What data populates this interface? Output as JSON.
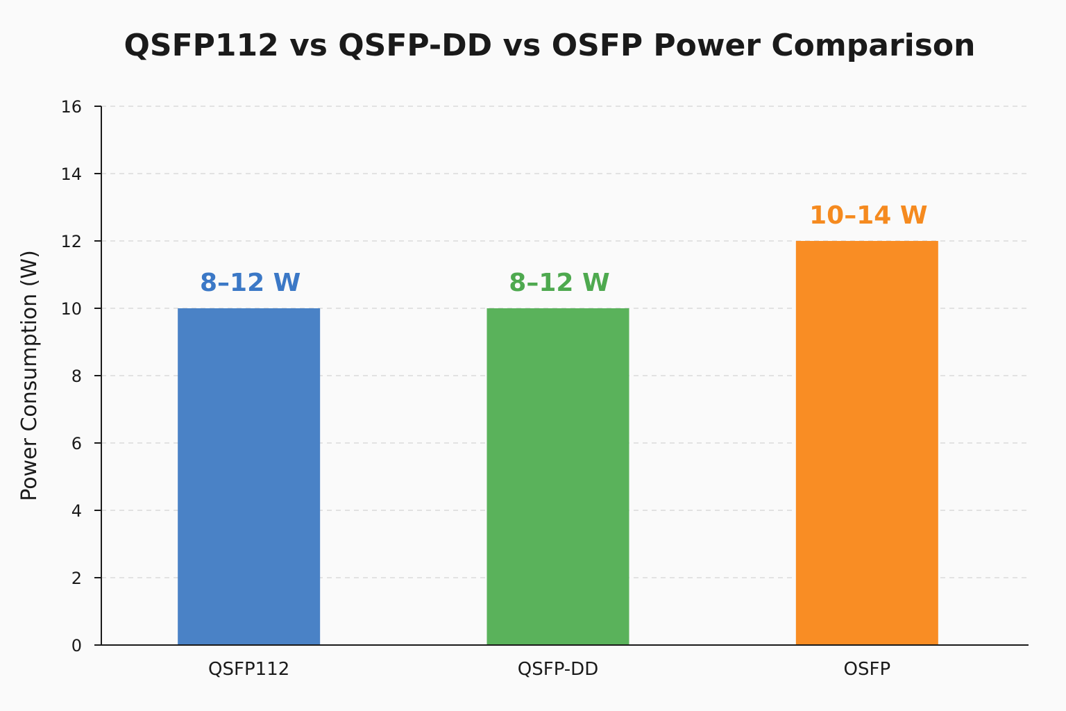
{
  "chart_data": {
    "type": "bar",
    "title": "QSFP112 vs QSFP-DD vs OSFP Power Comparison",
    "xlabel": "",
    "ylabel": "Power Consumption (W)",
    "ylim": [
      0,
      16
    ],
    "yticks": [
      0,
      2,
      4,
      6,
      8,
      10,
      12,
      14,
      16
    ],
    "grid": true,
    "categories": [
      "QSFP112",
      "QSFP-DD",
      "OSFP"
    ],
    "values": [
      10,
      10,
      12
    ],
    "data_labels": [
      "8–12 W",
      "8–12 W",
      "10–14 W"
    ],
    "colors": [
      "#4a82c6",
      "#5ab25b",
      "#f98d24"
    ],
    "label_colors": [
      "#3b78c6",
      "#4ea94f",
      "#f58a1f"
    ]
  }
}
